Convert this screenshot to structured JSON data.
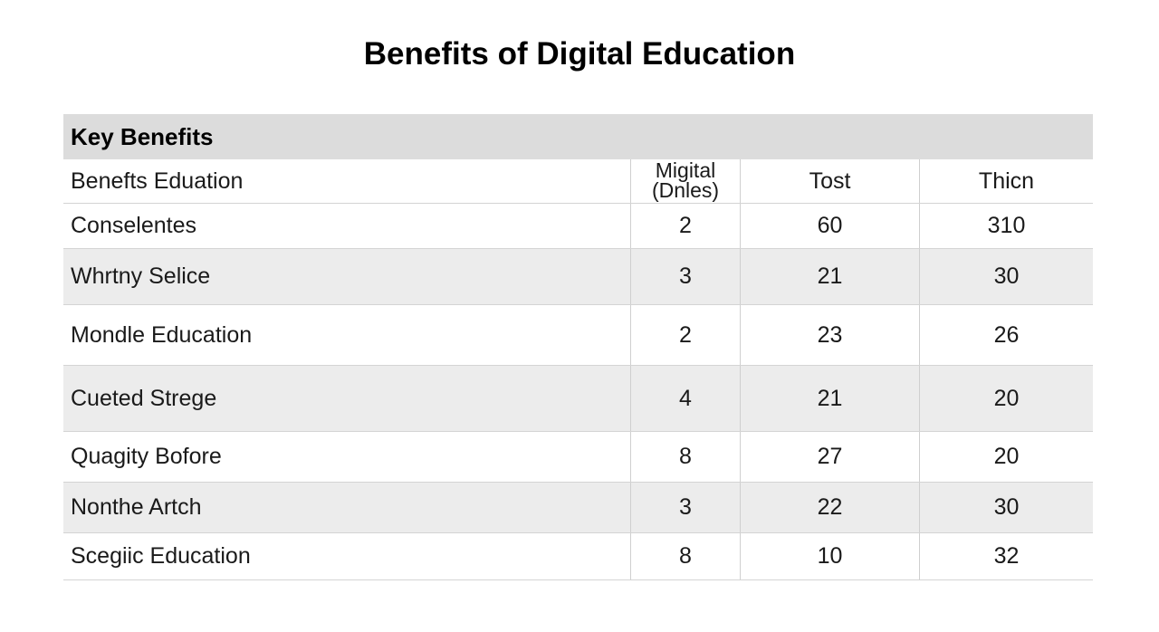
{
  "header": {
    "title": "Benefits of Digital Education"
  },
  "table": {
    "section": "Key Benefits",
    "columns": [
      "Benefts Eduation",
      "Migital (Dnles)",
      "Tost",
      "Thicn"
    ],
    "rows": [
      [
        "Conselentes",
        2,
        60,
        310
      ],
      [
        "Whrtny Selice",
        3,
        21,
        30
      ],
      [
        "Mondle Education",
        2,
        23,
        26
      ],
      [
        "Cueted Strege",
        4,
        21,
        20
      ],
      [
        "Quagity Bofore",
        8,
        27,
        20
      ],
      [
        "Nonthe Artch",
        3,
        22,
        30
      ],
      [
        "Scegiic Education",
        8,
        10,
        32
      ]
    ]
  }
}
